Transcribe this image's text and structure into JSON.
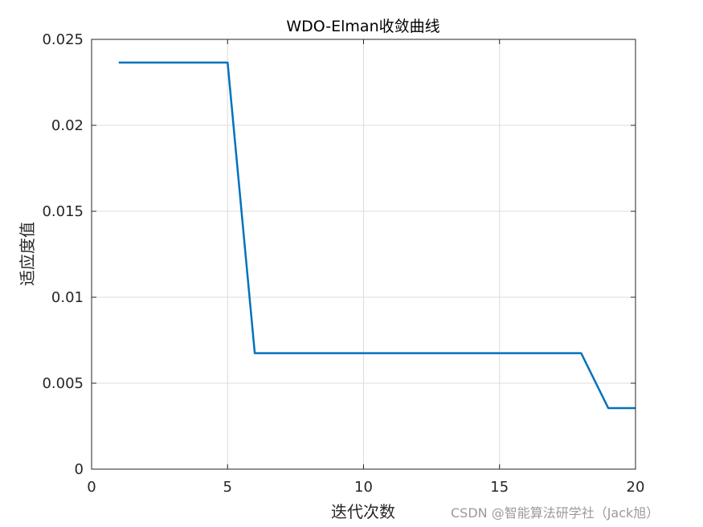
{
  "chart_data": {
    "type": "line",
    "title": "WDO-Elman收敛曲线",
    "xlabel": "迭代次数",
    "ylabel": "适应度值",
    "xlim": [
      0,
      20
    ],
    "ylim": [
      0,
      0.025
    ],
    "xticks": [
      0,
      5,
      10,
      15,
      20
    ],
    "xtick_labels": [
      "0",
      "5",
      "10",
      "15",
      "20"
    ],
    "yticks": [
      0,
      0.005,
      0.01,
      0.015,
      0.02,
      0.025
    ],
    "ytick_labels": [
      "0",
      "0.005",
      "0.01",
      "0.015",
      "0.02",
      "0.025"
    ],
    "grid": true,
    "series": [
      {
        "color": "#0072bd",
        "x": [
          1,
          2,
          3,
          4,
          5,
          6,
          7,
          8,
          9,
          10,
          11,
          12,
          13,
          14,
          15,
          16,
          17,
          18,
          19,
          20
        ],
        "y": [
          0.02365,
          0.02365,
          0.02365,
          0.02365,
          0.02365,
          0.00675,
          0.00675,
          0.00675,
          0.00675,
          0.00675,
          0.00675,
          0.00675,
          0.00675,
          0.00675,
          0.00675,
          0.00675,
          0.00675,
          0.00675,
          0.00355,
          0.00355
        ]
      }
    ]
  },
  "watermark": "CSDN @智能算法研学社（Jack旭）"
}
